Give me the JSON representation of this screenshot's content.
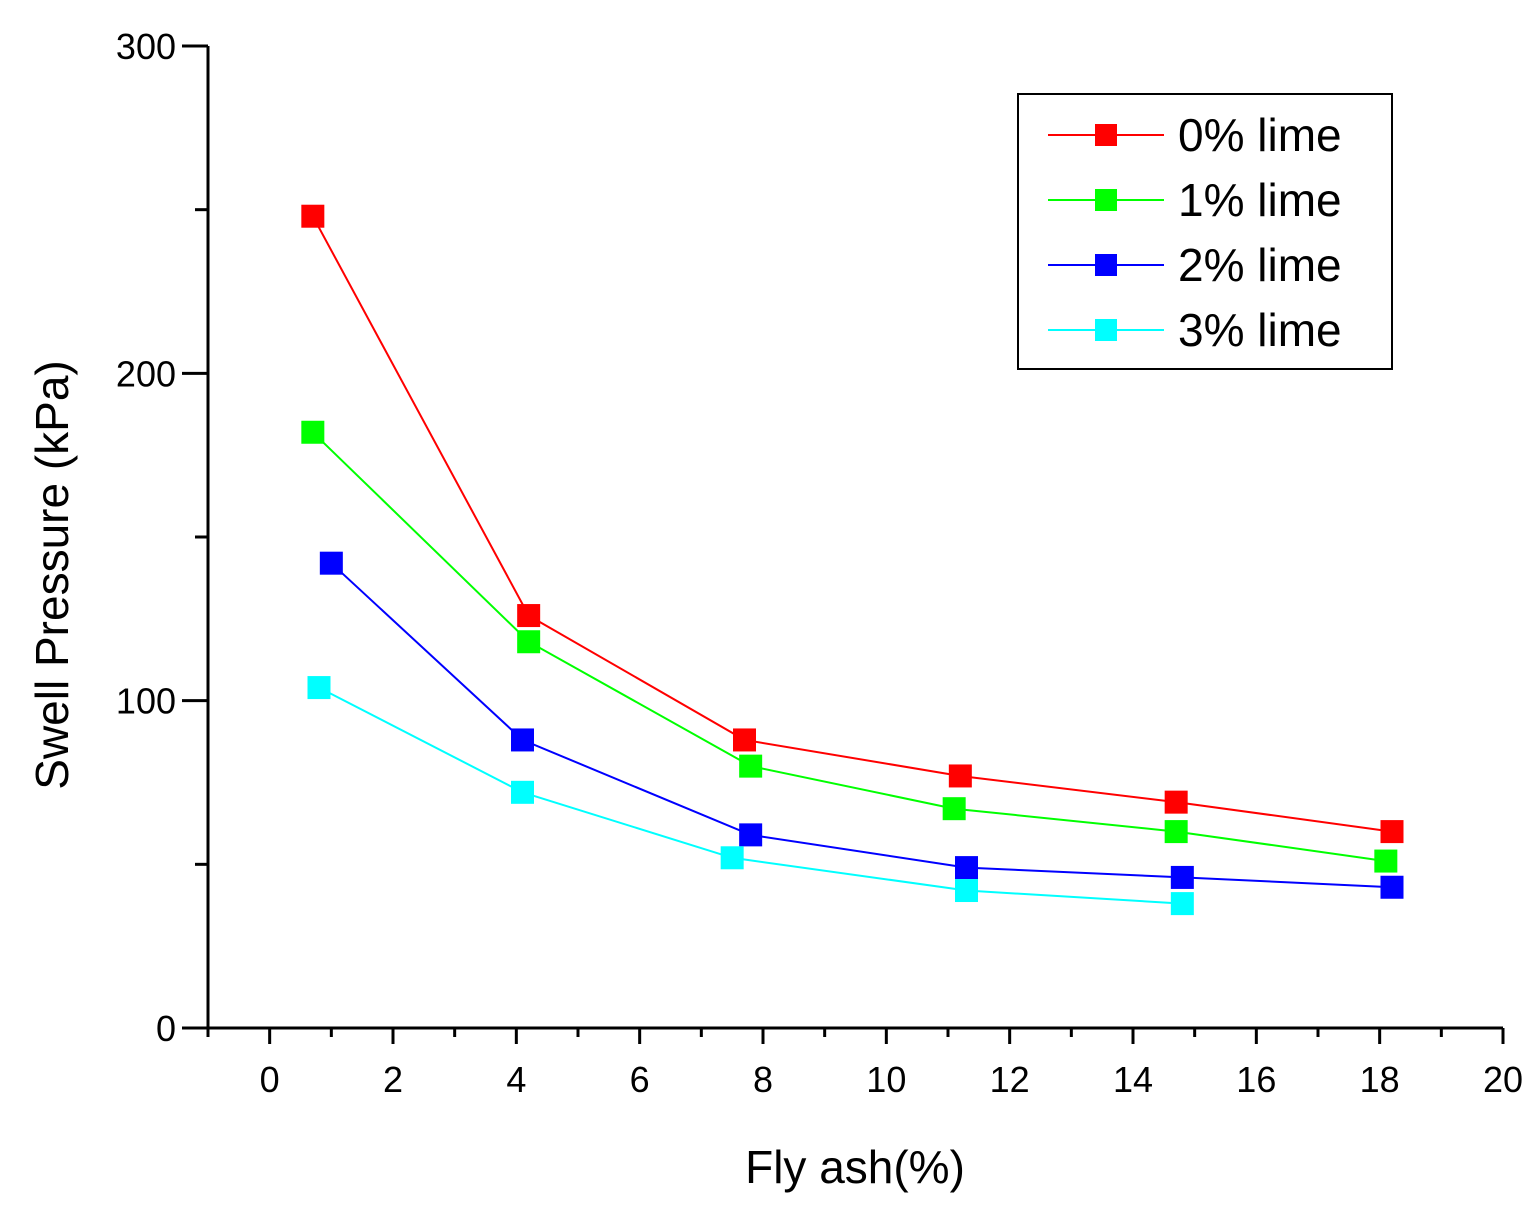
{
  "chart_data": {
    "type": "line",
    "title": "",
    "xlabel": "Fly ash(%)",
    "ylabel": "Swell Pressure (kPa)",
    "xlim": [
      -1,
      20
    ],
    "ylim": [
      0,
      300
    ],
    "x_ticks": [
      0,
      2,
      4,
      6,
      8,
      10,
      12,
      14,
      16,
      18,
      20
    ],
    "y_ticks": [
      0,
      100,
      200,
      300
    ],
    "x_minor_ticks": [
      -1,
      1,
      3,
      5,
      7,
      9,
      11,
      13,
      15,
      17,
      19
    ],
    "y_minor_ticks": [
      50,
      150,
      250
    ],
    "grid": false,
    "legend_position": "top-right",
    "series": [
      {
        "name": "0% lime",
        "color": "#ff0000",
        "x": [
          0.7,
          4.2,
          7.7,
          11.2,
          14.7,
          18.2
        ],
        "y": [
          248,
          126,
          88,
          77,
          69,
          60
        ]
      },
      {
        "name": "1% lime",
        "color": "#00ff00",
        "x": [
          0.7,
          4.2,
          7.8,
          11.1,
          14.7,
          18.1
        ],
        "y": [
          182,
          118,
          80,
          67,
          60,
          51
        ]
      },
      {
        "name": "2% lime",
        "color": "#0000ff",
        "x": [
          1.0,
          4.1,
          7.8,
          11.3,
          14.8,
          18.2
        ],
        "y": [
          142,
          88,
          59,
          49,
          46,
          43
        ]
      },
      {
        "name": "3% lime",
        "color": "#00ffff",
        "x": [
          0.8,
          4.1,
          7.5,
          11.3,
          14.8
        ],
        "y": [
          104,
          72,
          52,
          42,
          38
        ]
      }
    ]
  }
}
